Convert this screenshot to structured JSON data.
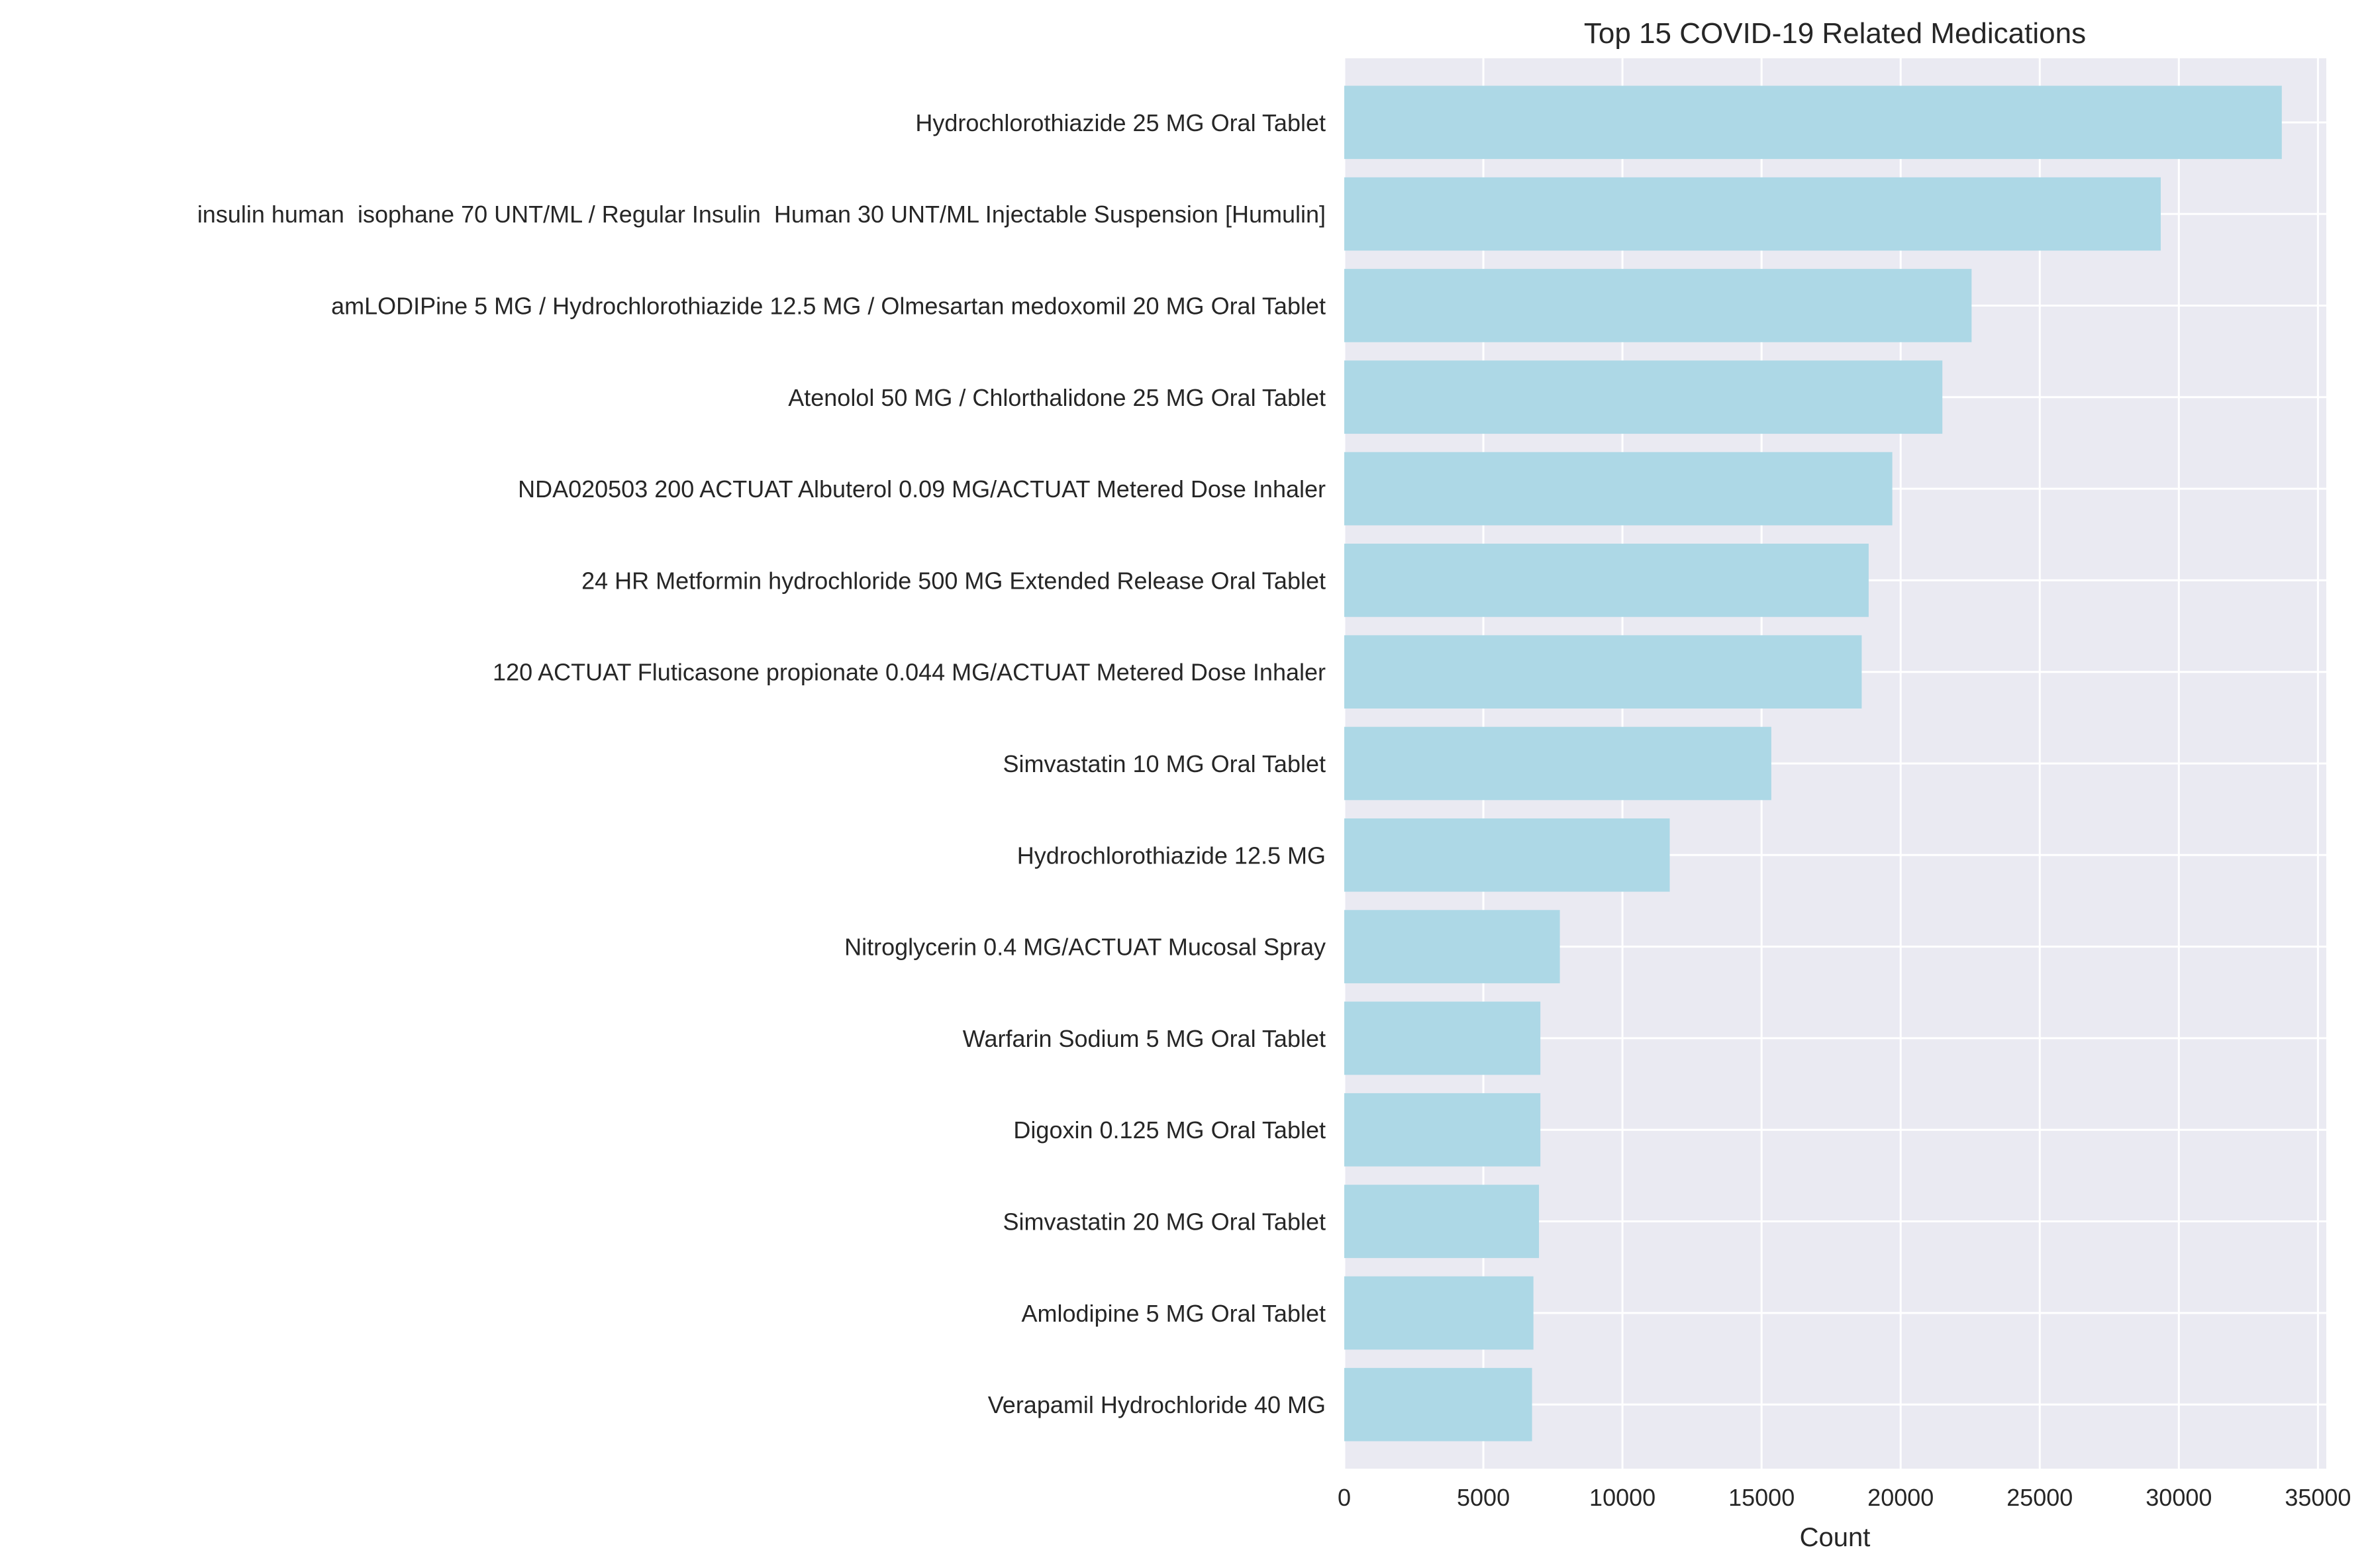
{
  "chart_data": {
    "type": "bar",
    "orientation": "horizontal",
    "title": "Top 15 COVID-19 Related Medications",
    "xlabel": "Count",
    "ylabel": "",
    "xlim": [
      0,
      35300
    ],
    "xticks": [
      0,
      5000,
      10000,
      15000,
      20000,
      25000,
      30000,
      35000
    ],
    "grid": true,
    "legend": "none",
    "bar_color": "#add8e6",
    "background_color": "#eaeaf2",
    "grid_color": "#ffffff",
    "categories": [
      "Hydrochlorothiazide 25 MG Oral Tablet",
      "insulin human  isophane 70 UNT/ML / Regular Insulin  Human 30 UNT/ML Injectable Suspension [Humulin]",
      "amLODIPine 5 MG / Hydrochlorothiazide 12.5 MG / Olmesartan medoxomil 20 MG Oral Tablet",
      "Atenolol 50 MG / Chlorthalidone 25 MG Oral Tablet",
      "NDA020503 200 ACTUAT Albuterol 0.09 MG/ACTUAT Metered Dose Inhaler",
      "24 HR Metformin hydrochloride 500 MG Extended Release Oral Tablet",
      "120 ACTUAT Fluticasone propionate 0.044 MG/ACTUAT Metered Dose Inhaler",
      "Simvastatin 10 MG Oral Tablet",
      "Hydrochlorothiazide 12.5 MG",
      "Nitroglycerin 0.4 MG/ACTUAT Mucosal Spray",
      "Warfarin Sodium 5 MG Oral Tablet",
      "Digoxin 0.125 MG Oral Tablet",
      "Simvastatin 20 MG Oral Tablet",
      "Amlodipine 5 MG Oral Tablet",
      "Verapamil Hydrochloride 40 MG"
    ],
    "values": [
      33700,
      29350,
      22550,
      21500,
      19700,
      18850,
      18600,
      15350,
      11700,
      7750,
      7050,
      7050,
      7000,
      6800,
      6750
    ]
  }
}
